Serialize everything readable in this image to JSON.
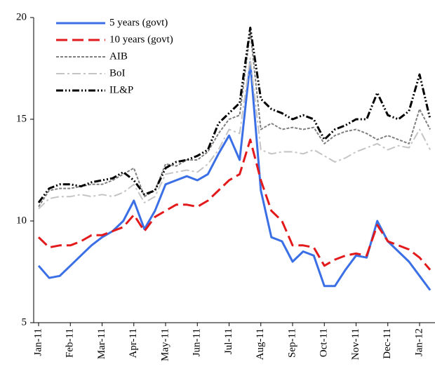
{
  "chart_data": {
    "type": "line",
    "categories": [
      "Jan-11",
      null,
      null,
      "Feb-11",
      null,
      null,
      "Mar-11",
      null,
      null,
      "Apr-11",
      null,
      null,
      "May-11",
      null,
      null,
      "Jun-11",
      null,
      null,
      "Jul-11",
      null,
      null,
      "Aug-11",
      null,
      null,
      "Sep-11",
      null,
      null,
      "Oct-11",
      null,
      null,
      "Nov-11",
      null,
      null,
      "Dec-11",
      null,
      null,
      "Jan-12",
      null
    ],
    "series": [
      {
        "name": "5 years (govt)",
        "color": "#3b6fe6",
        "line_style": "solid",
        "values": [
          7.8,
          7.2,
          7.3,
          7.8,
          8.3,
          8.8,
          9.2,
          9.5,
          10.0,
          11.0,
          9.6,
          10.5,
          11.8,
          12.0,
          12.2,
          12.0,
          12.3,
          13.3,
          14.2,
          13.0,
          17.8,
          11.5,
          9.2,
          9.0,
          8.0,
          8.5,
          8.3,
          6.8,
          6.8,
          7.6,
          8.3,
          8.2,
          10.0,
          9.0,
          8.5,
          8.0,
          7.3,
          6.6
        ]
      },
      {
        "name": "10 years (govt)",
        "color": "#e31a1c",
        "line_style": "dashed",
        "values": [
          9.2,
          8.7,
          8.8,
          8.8,
          9.0,
          9.3,
          9.3,
          9.5,
          9.7,
          10.3,
          9.5,
          10.2,
          10.5,
          10.8,
          10.8,
          10.7,
          11.0,
          11.5,
          12.0,
          12.3,
          14.0,
          12.0,
          10.5,
          10.0,
          8.8,
          8.8,
          8.7,
          7.8,
          8.1,
          8.3,
          8.4,
          8.3,
          9.8,
          9.0,
          8.8,
          8.6,
          8.2,
          7.6
        ]
      },
      {
        "name": "AIB",
        "color": "#808080",
        "line_style": "dotted",
        "values": [
          10.7,
          11.5,
          11.6,
          11.6,
          11.7,
          11.8,
          11.8,
          12.0,
          12.3,
          12.6,
          11.2,
          11.5,
          12.8,
          12.7,
          13.0,
          13.0,
          13.4,
          14.3,
          15.0,
          15.2,
          19.3,
          14.5,
          14.8,
          14.5,
          14.6,
          14.5,
          14.6,
          13.8,
          14.2,
          14.4,
          14.5,
          14.3,
          14.0,
          14.2,
          14.0,
          13.8,
          15.5,
          14.5
        ]
      },
      {
        "name": "BoI",
        "color": "#c4c4c4",
        "line_style": "dashdot",
        "values": [
          10.6,
          11.1,
          11.2,
          11.2,
          11.3,
          11.2,
          11.3,
          11.2,
          11.4,
          11.8,
          10.9,
          11.2,
          12.3,
          12.4,
          12.5,
          12.4,
          12.8,
          13.5,
          14.5,
          14.3,
          18.0,
          13.5,
          13.3,
          13.4,
          13.4,
          13.3,
          13.5,
          13.2,
          12.9,
          13.1,
          13.4,
          13.6,
          13.8,
          13.5,
          13.7,
          13.6,
          14.5,
          13.5
        ]
      },
      {
        "name": "IL&P",
        "color": "#000000",
        "line_style": "dashdotdot",
        "values": [
          10.9,
          11.6,
          11.8,
          11.8,
          11.7,
          11.9,
          12.0,
          12.1,
          12.4,
          12.0,
          11.3,
          11.5,
          12.6,
          12.9,
          13.0,
          13.2,
          13.5,
          14.8,
          15.3,
          15.8,
          19.5,
          16.0,
          15.5,
          15.3,
          15.0,
          15.2,
          15.0,
          14.0,
          14.5,
          14.7,
          15.0,
          15.0,
          16.3,
          15.2,
          15.0,
          15.4,
          17.2,
          15.0
        ]
      }
    ],
    "ylim": [
      5,
      20
    ],
    "yticks": [
      5,
      10,
      15,
      20
    ],
    "grid": false,
    "legend": "top-left"
  }
}
